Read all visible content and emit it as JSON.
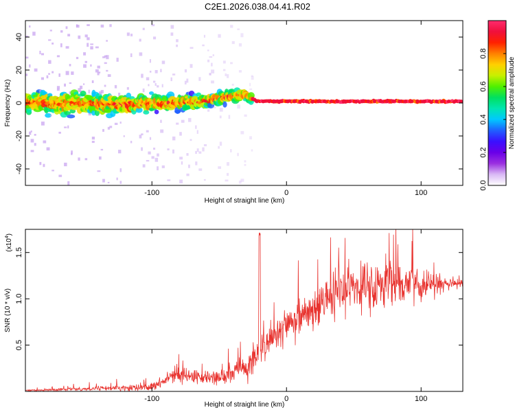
{
  "title": "C2E1.2026.038.04.41.R02",
  "chart_data": [
    {
      "type": "heatmap",
      "name": "spectrogram",
      "xlabel": "Height of straight line (km)",
      "ylabel": "Frequency (Hz)",
      "xlim": [
        -194,
        131
      ],
      "ylim": [
        -50,
        50
      ],
      "x_ticks": [
        -100,
        0,
        100
      ],
      "y_ticks": [
        -40,
        -20,
        0,
        20,
        40
      ],
      "x_tick_labels": [
        "-100",
        "0",
        "100"
      ],
      "y_tick_labels": [
        "-40",
        "-20",
        "0",
        "20",
        "40"
      ],
      "ridge": {
        "x": [
          -194,
          -150,
          -120,
          -90,
          -60,
          -50,
          -40,
          -30,
          -26,
          -22,
          -20,
          0,
          50,
          100,
          131
        ],
        "freq_hz": [
          0,
          0,
          -1,
          0,
          1,
          3,
          4,
          5,
          3,
          1,
          1,
          1,
          1,
          1,
          1
        ]
      },
      "colorbar": {
        "label": "Normalized spectral amplitude",
        "range": [
          0.0,
          1.0
        ],
        "ticks": [
          0.0,
          0.2,
          0.4,
          0.6,
          0.8
        ],
        "tick_labels": [
          "0.0",
          "0.2",
          "0.4",
          "0.6",
          "0.8"
        ],
        "colors": [
          "#ffffff",
          "#d9b8f5",
          "#9b30e0",
          "#6a00e8",
          "#3a10ff",
          "#1f5fff",
          "#00c8ff",
          "#00e6b0",
          "#00e060",
          "#50f000",
          "#c8f000",
          "#ffd000",
          "#ff8000",
          "#ff2000",
          "#f0103c",
          "#ff2b6e"
        ]
      }
    },
    {
      "type": "line",
      "name": "snr",
      "xlabel": "Height of straight line (km)",
      "ylabel": "SNR (10 * v/v)",
      "y_multiplier_label": "(x10",
      "y_multiplier_exp": "4",
      "xlim": [
        -194,
        131
      ],
      "ylim": [
        0,
        1.75
      ],
      "x_ticks": [
        -100,
        0,
        100
      ],
      "y_ticks": [
        0.5,
        1.0,
        1.5
      ],
      "x_tick_labels": [
        "-100",
        "0",
        "100"
      ],
      "y_tick_labels": [
        "0.5",
        "1.0",
        "1.5"
      ],
      "color": "#e8322e",
      "series_envelope": {
        "x": [
          -194,
          -170,
          -140,
          -120,
          -100,
          -90,
          -85,
          -80,
          -70,
          -60,
          -50,
          -40,
          -30,
          -25,
          -22,
          -20,
          -19,
          -15,
          -10,
          -5,
          0,
          5,
          10,
          20,
          30,
          40,
          50,
          60,
          70,
          80,
          90,
          100,
          110,
          120,
          131
        ],
        "mean": [
          0.01,
          0.02,
          0.03,
          0.04,
          0.05,
          0.12,
          0.18,
          0.17,
          0.16,
          0.14,
          0.15,
          0.2,
          0.25,
          0.32,
          0.42,
          0.35,
          0.45,
          0.5,
          0.6,
          0.66,
          0.72,
          0.75,
          0.8,
          0.88,
          0.98,
          1.08,
          1.12,
          1.14,
          1.15,
          1.16,
          1.16,
          1.15,
          1.15,
          1.16,
          1.17
        ],
        "spread": [
          0.01,
          0.02,
          0.03,
          0.04,
          0.05,
          0.07,
          0.12,
          0.12,
          0.1,
          0.08,
          0.12,
          0.14,
          0.16,
          0.2,
          0.2,
          0.15,
          0.25,
          0.18,
          0.2,
          0.22,
          0.22,
          0.24,
          0.26,
          0.28,
          0.3,
          0.32,
          0.32,
          0.32,
          0.3,
          0.28,
          0.26,
          0.2,
          0.14,
          0.08,
          0.05
        ]
      },
      "spike": {
        "x": -20,
        "value": 1.73
      }
    }
  ]
}
